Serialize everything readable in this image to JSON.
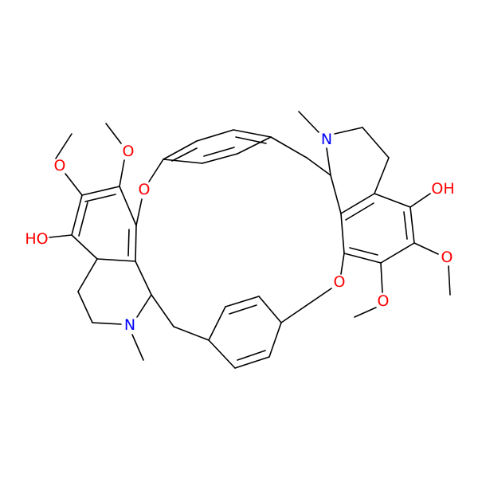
{
  "atoms": [
    {
      "label": "O"
    },
    {
      "label": "O"
    },
    {
      "label": "HO"
    },
    {
      "label": "OH"
    },
    {
      "label": "N"
    },
    {
      "label": "N"
    },
    {
      "label": "O"
    },
    {
      "label": "O"
    },
    {
      "label": "O"
    },
    {
      "label": "O"
    }
  ]
}
